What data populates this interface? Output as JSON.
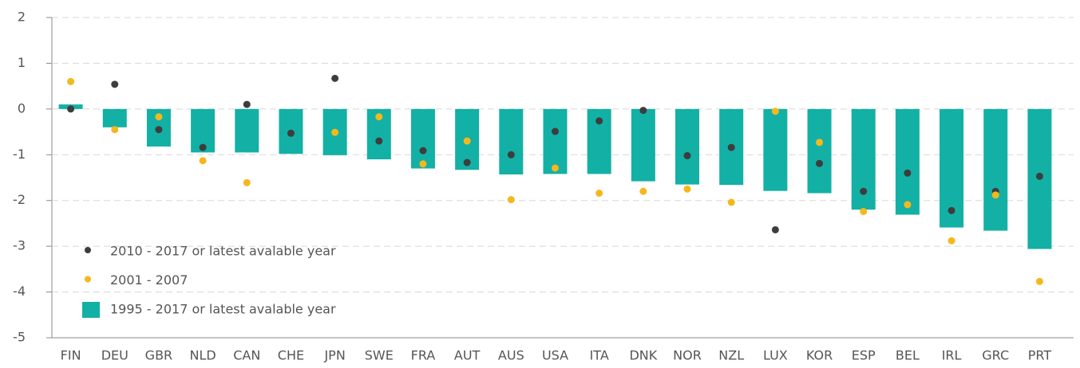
{
  "chart_data": {
    "type": "bar_dot",
    "categories": [
      "FIN",
      "DEU",
      "GBR",
      "NLD",
      "CAN",
      "CHE",
      "JPN",
      "SWE",
      "FRA",
      "AUT",
      "AUS",
      "USA",
      "ITA",
      "DNK",
      "NOR",
      "NZL",
      "LUX",
      "KOR",
      "ESP",
      "BEL",
      "IRL",
      "GRC",
      "PRT"
    ],
    "series": [
      {
        "name": "2010 - 2017 or latest avalable year",
        "type": "dot",
        "color": "#3d3d3d",
        "values": [
          0.0,
          0.54,
          -0.45,
          -0.84,
          0.1,
          -0.53,
          0.67,
          -0.7,
          -0.91,
          -1.17,
          -1.0,
          -0.49,
          -0.26,
          -0.03,
          -1.02,
          -0.84,
          -2.64,
          -1.19,
          -1.8,
          -1.4,
          -2.22,
          -1.8,
          -1.47
        ]
      },
      {
        "name": "2001 - 2007",
        "type": "dot",
        "color": "#f5b81c",
        "values": [
          0.6,
          -0.45,
          -0.17,
          -1.13,
          -1.61,
          null,
          -0.51,
          -0.17,
          -1.2,
          -0.7,
          -1.98,
          -1.29,
          -1.84,
          -1.8,
          -1.75,
          -2.04,
          -0.05,
          -0.73,
          -2.24,
          -2.09,
          -2.88,
          -1.88,
          -3.77
        ]
      },
      {
        "name": "1995 - 2017 or latest avalable year",
        "type": "bar",
        "color": "#13b0a5",
        "values": [
          0.1,
          -0.4,
          -0.82,
          -0.95,
          -0.95,
          -0.98,
          -1.01,
          -1.1,
          -1.3,
          -1.33,
          -1.43,
          -1.42,
          -1.42,
          -1.58,
          -1.65,
          -1.66,
          -1.79,
          -1.84,
          -2.2,
          -2.31,
          -2.59,
          -2.66,
          -3.06
        ]
      }
    ],
    "ylim": [
      -5,
      2
    ],
    "yticks": [
      -5,
      -4,
      -3,
      -2,
      -1,
      0,
      1,
      2
    ],
    "grid": true,
    "legend": "lower left"
  }
}
